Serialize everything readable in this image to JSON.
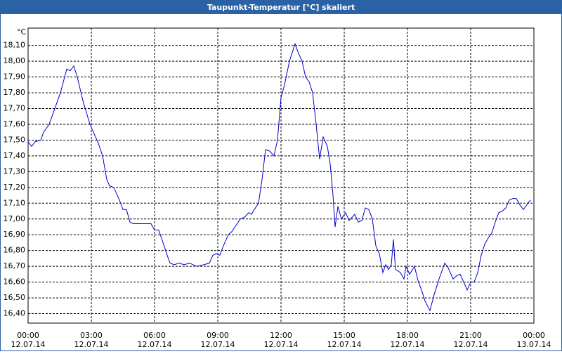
{
  "chart_data": {
    "type": "line",
    "title": "Taupunkt-Temperatur [°C] skaliert",
    "y_unit": "°C",
    "xlim": [
      0,
      1440
    ],
    "ylim": [
      16.34,
      18.21
    ],
    "grid": true,
    "xticks": [
      {
        "value": 0,
        "label": "00:00"
      },
      {
        "value": 180,
        "label": "03:00"
      },
      {
        "value": 360,
        "label": "06:00"
      },
      {
        "value": 540,
        "label": "09:00"
      },
      {
        "value": 720,
        "label": "12:00"
      },
      {
        "value": 900,
        "label": "15:00"
      },
      {
        "value": 1080,
        "label": "18:00"
      },
      {
        "value": 1260,
        "label": "21:00"
      },
      {
        "value": 1440,
        "label": "00:00"
      }
    ],
    "xtick_dates": [
      "12.07.14",
      "12.07.14",
      "12.07.14",
      "12.07.14",
      "12.07.14",
      "12.07.14",
      "12.07.14",
      "12.07.14",
      "13.07.14"
    ],
    "yticks": [
      {
        "value": 16.4,
        "label": "16,40"
      },
      {
        "value": 16.5,
        "label": "16,50"
      },
      {
        "value": 16.6,
        "label": "16,60"
      },
      {
        "value": 16.7,
        "label": "16,70"
      },
      {
        "value": 16.8,
        "label": "16,80"
      },
      {
        "value": 16.9,
        "label": "16,90"
      },
      {
        "value": 17.0,
        "label": "17,00"
      },
      {
        "value": 17.1,
        "label": "17,10"
      },
      {
        "value": 17.2,
        "label": "17,20"
      },
      {
        "value": 17.3,
        "label": "17,30"
      },
      {
        "value": 17.4,
        "label": "17,40"
      },
      {
        "value": 17.5,
        "label": "17,50"
      },
      {
        "value": 17.6,
        "label": "17,60"
      },
      {
        "value": 17.7,
        "label": "17,70"
      },
      {
        "value": 17.8,
        "label": "17,80"
      },
      {
        "value": 17.9,
        "label": "17,90"
      },
      {
        "value": 18.0,
        "label": "18,00"
      },
      {
        "value": 18.1,
        "label": "18,10"
      }
    ],
    "x": [
      0,
      10,
      20,
      36,
      44,
      60,
      76,
      92,
      110,
      120,
      130,
      140,
      156,
      176,
      190,
      200,
      212,
      224,
      232,
      244,
      260,
      270,
      280,
      290,
      300,
      320,
      350,
      360,
      372,
      384,
      396,
      404,
      416,
      430,
      444,
      460,
      480,
      500,
      516,
      526,
      536,
      546,
      556,
      570,
      580,
      592,
      604,
      616,
      628,
      636,
      644,
      656,
      666,
      676,
      688,
      700,
      710,
      720,
      730,
      744,
      760,
      770,
      780,
      790,
      800,
      810,
      820,
      830,
      840,
      852,
      860,
      868,
      874,
      882,
      892,
      904,
      914,
      922,
      930,
      940,
      950,
      960,
      970,
      980,
      990,
      1000,
      1010,
      1018,
      1026,
      1034,
      1040,
      1046,
      1060,
      1070,
      1076,
      1086,
      1100,
      1110,
      1120,
      1130,
      1144,
      1156,
      1170,
      1186,
      1196,
      1210,
      1220,
      1230,
      1240,
      1250,
      1260,
      1270,
      1280,
      1290,
      1300,
      1310,
      1320,
      1330,
      1340,
      1350,
      1360,
      1370,
      1380,
      1390,
      1400,
      1410,
      1420,
      1430
    ],
    "series": [
      {
        "color": "#0000cc",
        "values": [
          17.49,
          17.46,
          17.49,
          17.5,
          17.55,
          17.6,
          17.7,
          17.8,
          17.95,
          17.94,
          17.97,
          17.9,
          17.75,
          17.6,
          17.53,
          17.48,
          17.4,
          17.25,
          17.21,
          17.2,
          17.12,
          17.06,
          17.06,
          16.98,
          16.97,
          16.97,
          16.97,
          16.93,
          16.93,
          16.85,
          16.77,
          16.72,
          16.71,
          16.72,
          16.71,
          16.72,
          16.7,
          16.71,
          16.72,
          16.77,
          16.78,
          16.77,
          16.83,
          16.9,
          16.92,
          16.96,
          17.0,
          17.01,
          17.04,
          17.03,
          17.06,
          17.1,
          17.25,
          17.44,
          17.43,
          17.4,
          17.5,
          17.77,
          17.85,
          18.0,
          18.11,
          18.05,
          18.0,
          17.9,
          17.87,
          17.8,
          17.6,
          17.38,
          17.52,
          17.46,
          17.35,
          17.15,
          16.95,
          17.08,
          17.0,
          17.04,
          16.99,
          17.01,
          17.03,
          16.98,
          16.99,
          17.07,
          17.06,
          17.0,
          16.83,
          16.78,
          16.66,
          16.71,
          16.68,
          16.71,
          16.87,
          16.68,
          16.66,
          16.62,
          16.7,
          16.65,
          16.7,
          16.61,
          16.55,
          16.48,
          16.42,
          16.52,
          16.62,
          16.72,
          16.69,
          16.62,
          16.64,
          16.65,
          16.6,
          16.55,
          16.6,
          16.6,
          16.66,
          16.77,
          16.84,
          16.88,
          16.91,
          16.98,
          17.04,
          17.05,
          17.07,
          17.12,
          17.13,
          17.13,
          17.09,
          17.06,
          17.09,
          17.12
        ]
      }
    ]
  }
}
